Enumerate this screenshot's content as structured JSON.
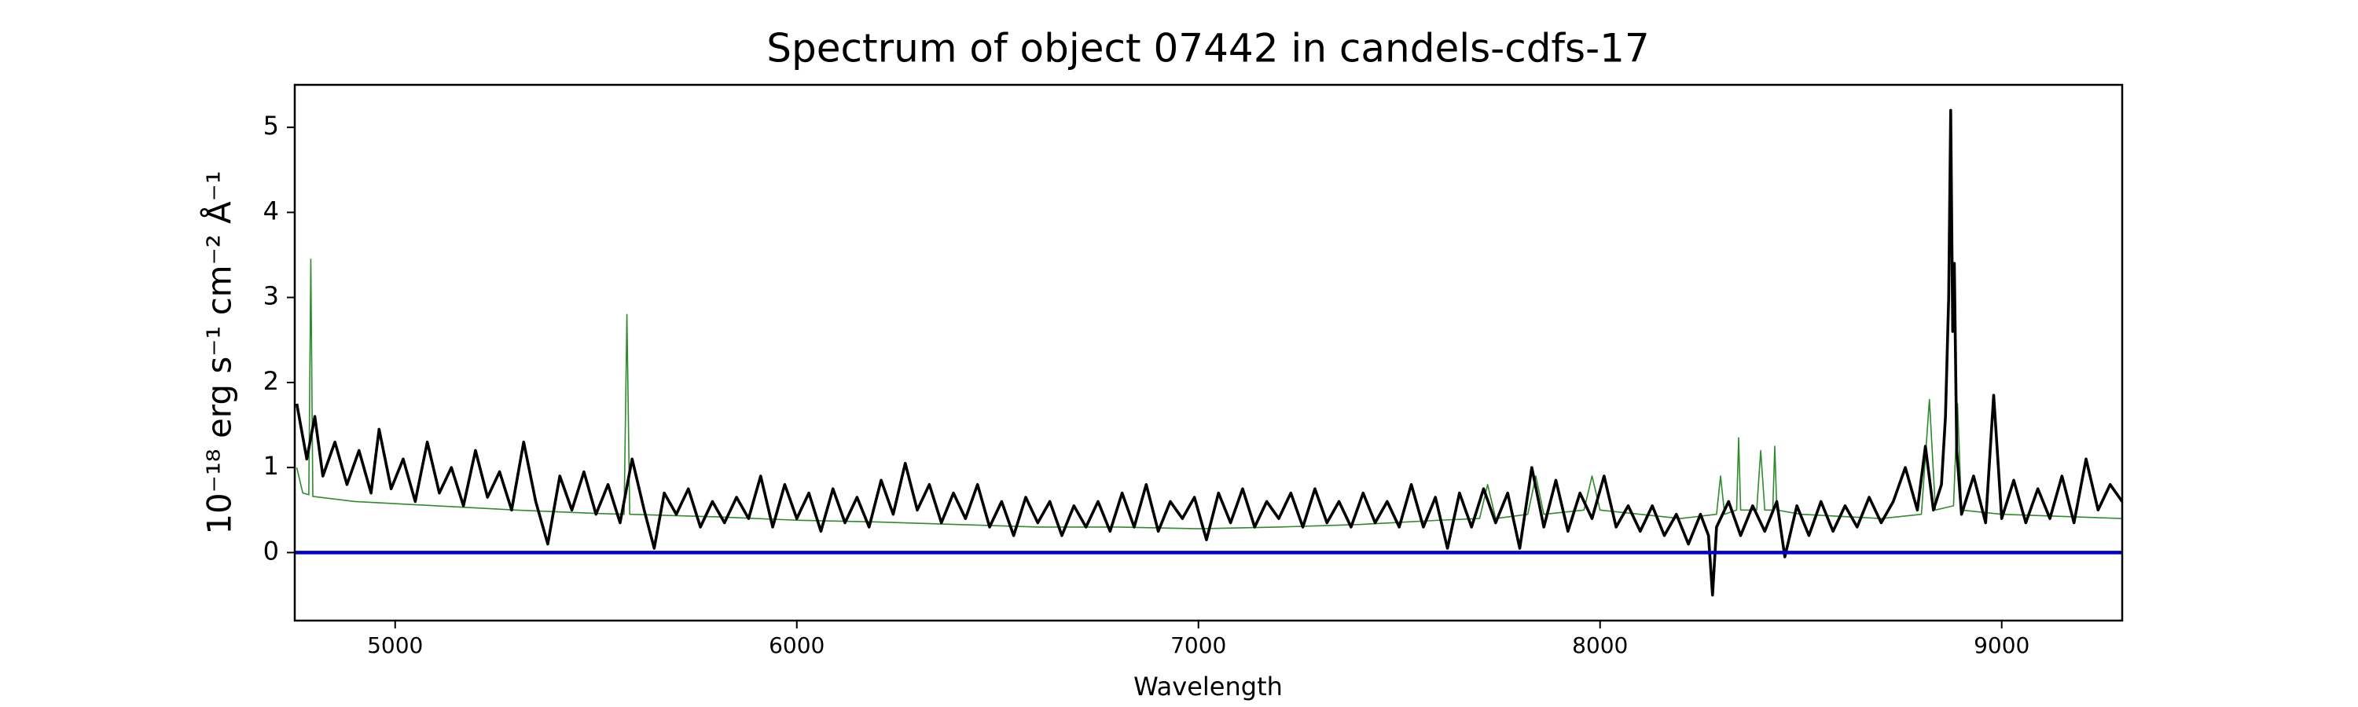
{
  "chart_data": {
    "type": "line",
    "title": "Spectrum of object 07442 in candels-cdfs-17",
    "x_label": "Wavelength",
    "y_label": "10⁻¹⁸ erg s⁻¹ cm⁻² Å⁻¹",
    "xlim": [
      4750,
      9300
    ],
    "ylim": [
      -0.8,
      5.5
    ],
    "xticks": [
      5000,
      6000,
      7000,
      8000,
      9000
    ],
    "yticks": [
      0,
      1,
      2,
      3,
      4,
      5
    ],
    "grid": false,
    "series": [
      {
        "color": "#2e8b2e",
        "x": [
          4755,
          4770,
          4785,
          4790,
          4795,
          4900,
          5100,
          5300,
          5500,
          5570,
          5577,
          5584,
          5800,
          6000,
          6200,
          6400,
          6600,
          6800,
          7000,
          7200,
          7400,
          7600,
          7700,
          7720,
          7740,
          7820,
          7840,
          7860,
          7960,
          7980,
          8000,
          8200,
          8290,
          8300,
          8310,
          8340,
          8345,
          8350,
          8390,
          8400,
          8410,
          8430,
          8435,
          8440,
          8500,
          8700,
          8800,
          8820,
          8835,
          8880,
          8890,
          8900,
          9000,
          9300
        ],
        "values": [
          1.0,
          0.7,
          0.68,
          3.45,
          0.66,
          0.6,
          0.55,
          0.5,
          0.46,
          0.45,
          2.8,
          0.45,
          0.42,
          0.38,
          0.36,
          0.33,
          0.3,
          0.3,
          0.28,
          0.3,
          0.33,
          0.38,
          0.4,
          0.8,
          0.4,
          0.45,
          0.9,
          0.45,
          0.5,
          0.9,
          0.5,
          0.4,
          0.45,
          0.9,
          0.45,
          0.5,
          1.35,
          0.5,
          0.5,
          1.2,
          0.5,
          0.5,
          1.25,
          0.5,
          0.45,
          0.4,
          0.45,
          1.8,
          0.5,
          0.55,
          1.75,
          0.5,
          0.45,
          0.4
        ]
      },
      {
        "color": "#000000",
        "x": [
          4755,
          4780,
          4800,
          4820,
          4850,
          4880,
          4910,
          4940,
          4960,
          4990,
          5020,
          5050,
          5080,
          5110,
          5140,
          5170,
          5200,
          5230,
          5260,
          5290,
          5320,
          5350,
          5380,
          5410,
          5440,
          5470,
          5500,
          5530,
          5560,
          5590,
          5620,
          5645,
          5670,
          5700,
          5730,
          5760,
          5790,
          5820,
          5850,
          5880,
          5910,
          5940,
          5970,
          6000,
          6030,
          6060,
          6090,
          6120,
          6150,
          6180,
          6210,
          6240,
          6270,
          6300,
          6330,
          6360,
          6390,
          6420,
          6450,
          6480,
          6510,
          6540,
          6570,
          6600,
          6630,
          6660,
          6690,
          6720,
          6750,
          6780,
          6810,
          6840,
          6870,
          6900,
          6930,
          6960,
          6990,
          7020,
          7050,
          7080,
          7110,
          7140,
          7170,
          7200,
          7230,
          7260,
          7290,
          7320,
          7350,
          7380,
          7410,
          7440,
          7470,
          7500,
          7530,
          7560,
          7590,
          7620,
          7650,
          7680,
          7710,
          7740,
          7770,
          7800,
          7830,
          7860,
          7890,
          7920,
          7950,
          7980,
          8010,
          8040,
          8070,
          8100,
          8130,
          8160,
          8190,
          8220,
          8250,
          8270,
          8280,
          8290,
          8320,
          8350,
          8380,
          8410,
          8440,
          8460,
          8490,
          8520,
          8550,
          8580,
          8610,
          8640,
          8670,
          8700,
          8730,
          8760,
          8790,
          8810,
          8830,
          8850,
          8860,
          8868,
          8873,
          8878,
          8882,
          8888,
          8900,
          8930,
          8960,
          8980,
          9000,
          9030,
          9060,
          9090,
          9120,
          9150,
          9180,
          9210,
          9240,
          9270,
          9300
        ],
        "values": [
          1.75,
          1.1,
          1.6,
          0.9,
          1.3,
          0.8,
          1.2,
          0.7,
          1.45,
          0.75,
          1.1,
          0.6,
          1.3,
          0.7,
          1.0,
          0.55,
          1.2,
          0.65,
          0.95,
          0.5,
          1.3,
          0.6,
          0.1,
          0.9,
          0.5,
          0.95,
          0.45,
          0.8,
          0.35,
          1.1,
          0.5,
          0.05,
          0.7,
          0.45,
          0.75,
          0.3,
          0.6,
          0.35,
          0.65,
          0.4,
          0.9,
          0.3,
          0.8,
          0.4,
          0.7,
          0.25,
          0.75,
          0.35,
          0.65,
          0.3,
          0.85,
          0.45,
          1.05,
          0.5,
          0.8,
          0.35,
          0.7,
          0.4,
          0.8,
          0.3,
          0.6,
          0.2,
          0.65,
          0.35,
          0.6,
          0.2,
          0.55,
          0.3,
          0.6,
          0.25,
          0.7,
          0.3,
          0.8,
          0.25,
          0.6,
          0.4,
          0.65,
          0.15,
          0.7,
          0.35,
          0.75,
          0.3,
          0.6,
          0.4,
          0.7,
          0.3,
          0.75,
          0.35,
          0.6,
          0.3,
          0.7,
          0.35,
          0.6,
          0.3,
          0.8,
          0.3,
          0.65,
          0.05,
          0.7,
          0.3,
          0.75,
          0.35,
          0.7,
          0.05,
          1.0,
          0.3,
          0.85,
          0.25,
          0.7,
          0.4,
          0.9,
          0.3,
          0.55,
          0.25,
          0.55,
          0.2,
          0.45,
          0.1,
          0.45,
          0.2,
          -0.5,
          0.3,
          0.6,
          0.2,
          0.55,
          0.25,
          0.6,
          -0.05,
          0.55,
          0.2,
          0.6,
          0.25,
          0.55,
          0.3,
          0.65,
          0.35,
          0.6,
          1.0,
          0.5,
          1.25,
          0.5,
          0.8,
          1.6,
          3.0,
          5.2,
          2.6,
          3.4,
          1.2,
          0.45,
          0.9,
          0.35,
          1.85,
          0.4,
          0.85,
          0.35,
          0.75,
          0.4,
          0.9,
          0.35,
          1.1,
          0.5,
          0.8,
          0.6
        ]
      },
      {
        "color": "#0000cc",
        "x": [
          4750,
          9300
        ],
        "values": [
          0,
          0
        ]
      }
    ]
  }
}
